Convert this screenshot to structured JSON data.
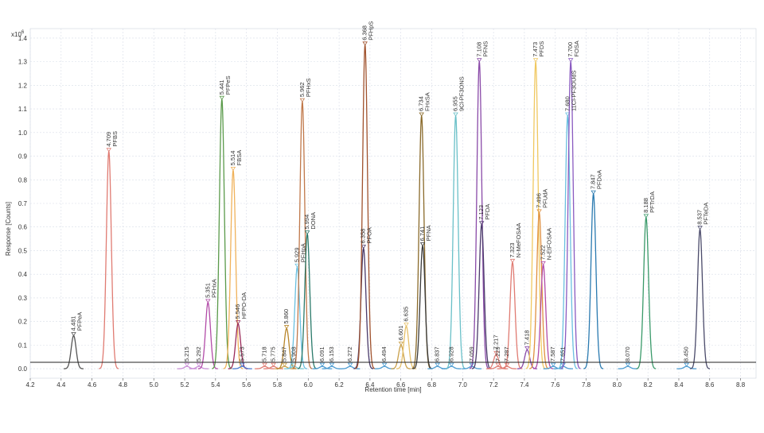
{
  "chart_data": {
    "type": "line",
    "title": "",
    "xlabel": "Retention time [min]",
    "ylabel": "Response [Counts]",
    "y_multiplier": "x10",
    "y_multiplier_exp": "6",
    "xlim": [
      4.2,
      8.9
    ],
    "ylim": [
      -0.04,
      1.44
    ],
    "x_ticks": [
      "4.2",
      "4.4",
      "4.6",
      "4.8",
      "5.0",
      "5.2",
      "5.4",
      "5.6",
      "5.8",
      "6.0",
      "6.2",
      "6.4",
      "6.6",
      "6.8",
      "7.0",
      "7.2",
      "7.4",
      "7.6",
      "7.8",
      "8.0",
      "8.2",
      "8.4",
      "8.6",
      "8.8"
    ],
    "y_ticks": [
      "0.0",
      "0.1",
      "0.2",
      "0.3",
      "0.4",
      "0.5",
      "0.6",
      "0.7",
      "0.8",
      "0.9",
      "1.0",
      "1.1",
      "1.2",
      "1.3",
      "1.4"
    ],
    "grid": true,
    "series": [
      {
        "rt": 4.481,
        "height": 0.14,
        "label": "4.481",
        "name": "PFPeA",
        "color": "#555555"
      },
      {
        "rt": 4.709,
        "height": 0.92,
        "label": "4.709",
        "name": "PFBS",
        "color": "#e07b72"
      },
      {
        "rt": 5.215,
        "height": 0.01,
        "label": "5.215",
        "name": "",
        "color": "#c98fd6"
      },
      {
        "rt": 5.292,
        "height": 0.01,
        "label": "5.292",
        "name": "",
        "color": "#c98fd6"
      },
      {
        "rt": 5.351,
        "height": 0.28,
        "label": "5.351",
        "name": "PFHxA",
        "color": "#b24ca8"
      },
      {
        "rt": 5.441,
        "height": 1.14,
        "label": "5.441",
        "name": "PFPeS",
        "color": "#5a9a4a"
      },
      {
        "rt": 5.514,
        "height": 0.84,
        "label": "5.514",
        "name": "FBSA",
        "color": "#f0b25a"
      },
      {
        "rt": 5.546,
        "height": 0.19,
        "label": "5.546",
        "name": "HFPO-DA",
        "color": "#9a2a5a"
      },
      {
        "rt": 5.573,
        "height": 0.01,
        "label": "5.573",
        "name": "",
        "color": "#4a7ad0"
      },
      {
        "rt": 5.718,
        "height": 0.01,
        "label": "5.718",
        "name": "",
        "color": "#e07b72"
      },
      {
        "rt": 5.775,
        "height": 0.01,
        "label": "5.775",
        "name": "",
        "color": "#e07b72"
      },
      {
        "rt": 5.847,
        "height": 0.01,
        "label": "5.847",
        "name": "",
        "color": "#c9a04a"
      },
      {
        "rt": 5.86,
        "height": 0.17,
        "label": "5.860",
        "name": "",
        "color": "#b8862a"
      },
      {
        "rt": 5.908,
        "height": 0.01,
        "label": "5.908",
        "name": "",
        "color": "#7ac8d0"
      },
      {
        "rt": 5.929,
        "height": 0.43,
        "label": "5.929",
        "name": "PFHpA",
        "color": "#6ac0e0"
      },
      {
        "rt": 5.962,
        "height": 1.13,
        "label": "5.962",
        "name": "PFHxS",
        "color": "#c0784a"
      },
      {
        "rt": 5.994,
        "height": 0.57,
        "label": "5.994",
        "name": "DONA",
        "color": "#2a7a6a"
      },
      {
        "rt": 6.091,
        "height": 0.01,
        "label": "6.091",
        "name": "",
        "color": "#4a9ad0"
      },
      {
        "rt": 6.153,
        "height": 0.01,
        "label": "6.153",
        "name": "",
        "color": "#4a9ad0"
      },
      {
        "rt": 6.272,
        "height": 0.01,
        "label": "6.272",
        "name": "",
        "color": "#4a9ad0"
      },
      {
        "rt": 6.358,
        "height": 0.51,
        "label": "6.358",
        "name": "PFOA",
        "color": "#4a3a6a"
      },
      {
        "rt": 6.368,
        "height": 1.37,
        "label": "6.368",
        "name": "PFHpS",
        "color": "#a0522d"
      },
      {
        "rt": 6.494,
        "height": 0.01,
        "label": "6.494",
        "name": "",
        "color": "#4a9ad0"
      },
      {
        "rt": 6.601,
        "height": 0.1,
        "label": "6.601",
        "name": "",
        "color": "#c9a04a"
      },
      {
        "rt": 6.635,
        "height": 0.18,
        "label": "6.635",
        "name": "",
        "color": "#e6c06a"
      },
      {
        "rt": 6.734,
        "height": 1.07,
        "label": "6.734",
        "name": "FHxSA",
        "color": "#8a6a2a"
      },
      {
        "rt": 6.741,
        "height": 0.52,
        "label": "6.741",
        "name": "PFNA",
        "color": "#3a3a3a"
      },
      {
        "rt": 6.837,
        "height": 0.01,
        "label": "6.837",
        "name": "",
        "color": "#4a9ad0"
      },
      {
        "rt": 6.928,
        "height": 0.01,
        "label": "6.928",
        "name": "",
        "color": "#4a9ad0"
      },
      {
        "rt": 6.955,
        "height": 1.07,
        "label": "6.955",
        "name": "9Cl-PF3ONS",
        "color": "#6ac0c8"
      },
      {
        "rt": 7.059,
        "height": 0.01,
        "label": "7.059",
        "name": "",
        "color": "#4a9ad0"
      },
      {
        "rt": 7.108,
        "height": 1.3,
        "label": "7.108",
        "name": "PFNS",
        "color": "#8a4aa8"
      },
      {
        "rt": 7.123,
        "height": 0.61,
        "label": "7.123",
        "name": "PFDA",
        "color": "#4a3a6a"
      },
      {
        "rt": 7.217,
        "height": 0.06,
        "label": "7.217",
        "name": "",
        "color": "#e07b72"
      },
      {
        "rt": 7.229,
        "height": 0.01,
        "label": "7.229",
        "name": "",
        "color": "#e07b72"
      },
      {
        "rt": 7.287,
        "height": 0.01,
        "label": "7.287",
        "name": "",
        "color": "#e07b72"
      },
      {
        "rt": 7.323,
        "height": 0.45,
        "label": "7.323",
        "name": "N-MeFOSAA",
        "color": "#e07b72"
      },
      {
        "rt": 7.418,
        "height": 0.08,
        "label": "7.418",
        "name": "",
        "color": "#8a4aa8"
      },
      {
        "rt": 7.473,
        "height": 1.3,
        "label": "7.473",
        "name": "PFDS",
        "color": "#f0c860"
      },
      {
        "rt": 7.496,
        "height": 0.66,
        "label": "7.496",
        "name": "PFUdA",
        "color": "#e09040"
      },
      {
        "rt": 7.522,
        "height": 0.44,
        "label": "7.522",
        "name": "N-EtFOSAA",
        "color": "#b24ca8"
      },
      {
        "rt": 7.587,
        "height": 0.01,
        "label": "7.587",
        "name": "",
        "color": "#4a9ad0"
      },
      {
        "rt": 7.651,
        "height": 0.01,
        "label": "7.651",
        "name": "",
        "color": "#4a9ad0"
      },
      {
        "rt": 7.68,
        "height": 1.07,
        "label": "7.680",
        "name": "11Cl-PF3OUdS",
        "color": "#6ac0e0"
      },
      {
        "rt": 7.7,
        "height": 1.3,
        "label": "7.700",
        "name": "FOSA",
        "color": "#8a5ac0"
      },
      {
        "rt": 7.847,
        "height": 0.74,
        "label": "7.847",
        "name": "PFDoA",
        "color": "#2a7ab0"
      },
      {
        "rt": 8.07,
        "height": 0.01,
        "label": "8.070",
        "name": "",
        "color": "#4a9ad0"
      },
      {
        "rt": 8.188,
        "height": 0.64,
        "label": "8.188",
        "name": "PFTrDA",
        "color": "#3a9a6a"
      },
      {
        "rt": 8.45,
        "height": 0.01,
        "label": "8.450",
        "name": "",
        "color": "#4a9ad0"
      },
      {
        "rt": 8.537,
        "height": 0.59,
        "label": "8.537",
        "name": "PFTeDA",
        "color": "#4a4a6a"
      }
    ]
  }
}
